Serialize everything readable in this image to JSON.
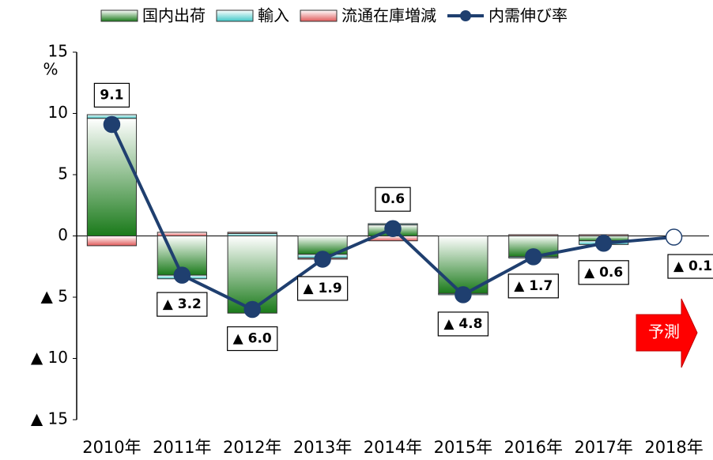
{
  "chart_data": {
    "type": "bar",
    "unit_label": "%",
    "annotation": "予測",
    "categories": [
      "2010年",
      "2011年",
      "2012年",
      "2013年",
      "2014年",
      "2015年",
      "2016年",
      "2017年",
      "2018年"
    ],
    "series": [
      {
        "name": "国内出荷",
        "color": "#1a7a1a",
        "values": [
          9.6,
          -3.2,
          -6.3,
          -1.5,
          0.9,
          -4.7,
          -1.7,
          -0.4,
          null
        ]
      },
      {
        "name": "輸入",
        "color": "#40c8c8",
        "values": [
          0.3,
          -0.3,
          0.2,
          -0.3,
          0.1,
          -0.1,
          -0.1,
          -0.3,
          null
        ]
      },
      {
        "name": "流通在庫増減",
        "color": "#e05a5a",
        "values": [
          -0.8,
          0.3,
          0.1,
          -0.1,
          -0.4,
          0.0,
          0.1,
          0.1,
          null
        ]
      },
      {
        "name": "内需伸び率",
        "type": "line",
        "color": "#1f3f6f",
        "values": [
          9.1,
          -3.2,
          -6.0,
          -1.9,
          0.6,
          -4.8,
          -1.7,
          -0.6,
          -0.1
        ],
        "value_labels": [
          "9.1",
          "▲ 3.2",
          "▲ 6.0",
          "▲ 1.9",
          "0.6",
          "▲ 4.8",
          "▲ 1.7",
          "▲ 0.6",
          "▲ 0.1"
        ]
      }
    ],
    "ylim": [
      -15,
      15
    ],
    "yticks": [
      {
        "value": -15,
        "label": "▲ 15"
      },
      {
        "value": -10,
        "label": "▲ 10"
      },
      {
        "value": -5,
        "label": "▲ 5"
      },
      0,
      5,
      10,
      15
    ],
    "legend": "top"
  }
}
